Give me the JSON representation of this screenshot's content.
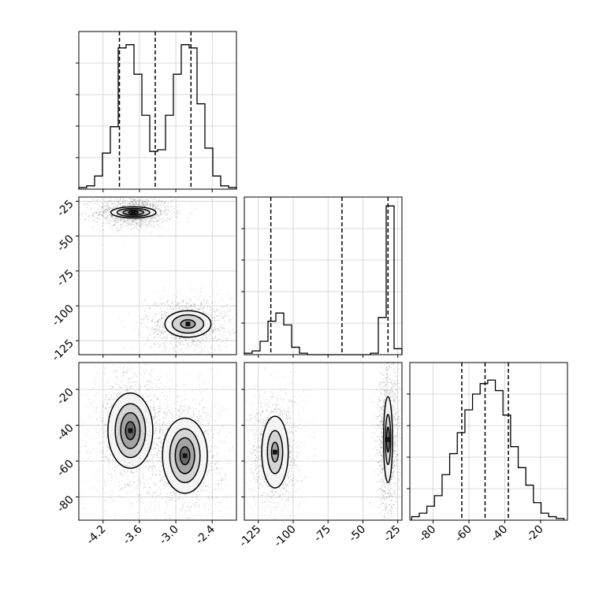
{
  "chart_data": {
    "type": "corner",
    "title": "",
    "parameters": [
      {
        "xlim": [
          -4.6,
          -2.0
        ],
        "xticks": [
          "-4.2",
          "-3.6",
          "-3.0",
          "-2.4"
        ],
        "xtick_values": [
          -4.2,
          -3.6,
          -3.0,
          -2.4
        ]
      },
      {
        "lim": [
          -135,
          -22
        ],
        "ticks": [
          "-25",
          "-50",
          "-75",
          "-100",
          "-125"
        ],
        "tick_values": [
          -25,
          -50,
          -75,
          -100,
          -125
        ],
        "xticks": [
          "-125",
          "-100",
          "-75",
          "-50",
          "-25"
        ],
        "xtick_values": [
          -125,
          -100,
          -75,
          -50,
          -25
        ]
      },
      {
        "lim": [
          -93,
          -5
        ],
        "ticks": [
          "-20",
          "-40",
          "-60",
          "-80"
        ],
        "tick_values": [
          -20,
          -40,
          -60,
          -80
        ],
        "xticks": [
          "-80",
          "-60",
          "-40",
          "-20"
        ],
        "xtick_values": [
          -80,
          -60,
          -40,
          -20
        ]
      }
    ],
    "histograms": [
      {
        "param": 0,
        "bin_start": -4.6,
        "bin_width": 0.13,
        "counts": [
          1,
          2,
          8,
          22,
          38,
          86,
          88,
          70,
          45,
          23,
          24,
          45,
          70,
          88,
          86,
          52,
          25,
          8,
          2,
          1
        ],
        "ylim": [
          0,
          96
        ],
        "quantiles": [
          -3.93,
          -3.34,
          -2.75
        ]
      },
      {
        "param": 1,
        "bin_start": -135,
        "bin_width": 5.65,
        "counts": [
          2,
          5,
          18,
          45,
          56,
          40,
          10,
          2,
          0,
          0,
          0,
          0,
          0,
          0,
          0,
          0,
          2,
          50,
          200,
          8
        ],
        "ylim": [
          0,
          212
        ],
        "quantiles": [
          -116,
          -65,
          -32
        ]
      },
      {
        "param": 2,
        "bin_start": -92,
        "bin_width": 4.25,
        "counts": [
          2,
          4,
          8,
          14,
          26,
          38,
          50,
          63,
          72,
          78,
          80,
          74,
          60,
          42,
          30,
          20,
          10,
          4,
          2,
          1
        ],
        "ylim": [
          0,
          90
        ],
        "quantiles": [
          -64,
          -51,
          -38
        ]
      }
    ],
    "scatter_panels": [
      {
        "x_param": 0,
        "y_param": 1,
        "modes": [
          {
            "center": [
              -3.7,
              -33
            ],
            "spread": [
              0.2,
              3.5
            ],
            "contours": [
              [
                0.08,
                1.0
              ],
              [
                0.17,
                1.9
              ],
              [
                0.27,
                2.9
              ],
              [
                0.37,
                4.0
              ]
            ]
          },
          {
            "center": [
              -2.8,
              -113
            ],
            "spread": [
              0.22,
              6
            ],
            "contours": [
              [
                0.12,
                3.0
              ],
              [
                0.26,
                6.5
              ],
              [
                0.38,
                9.5
              ]
            ]
          }
        ]
      },
      {
        "x_param": 0,
        "y_param": 2,
        "modes": [
          {
            "center": [
              -3.75,
              -43
            ],
            "spread": [
              0.2,
              11
            ],
            "contours": [
              [
                0.08,
                5.0
              ],
              [
                0.16,
                10.0
              ],
              [
                0.25,
                15.0
              ],
              [
                0.37,
                21.0
              ]
            ]
          },
          {
            "center": [
              -2.85,
              -57
            ],
            "spread": [
              0.2,
              11
            ],
            "contours": [
              [
                0.08,
                5.0
              ],
              [
                0.16,
                10.0
              ],
              [
                0.25,
                15.0
              ],
              [
                0.37,
                21.0
              ]
            ]
          }
        ]
      },
      {
        "x_param": 1,
        "y_param": 2,
        "modes": [
          {
            "center": [
              -113,
              -55
            ],
            "spread": [
              5.5,
              10
            ],
            "contours": [
              [
                2.5,
                5.5
              ],
              [
                5.5,
                12.0
              ],
              [
                9.5,
                20.0
              ]
            ]
          },
          {
            "center": [
              -32,
              -48
            ],
            "spread": [
              2.5,
              14
            ],
            "contours": [
              [
                0.9,
                7.0
              ],
              [
                1.9,
                14.0
              ],
              [
                3.2,
                24.0
              ]
            ]
          }
        ]
      }
    ],
    "grid": true
  }
}
